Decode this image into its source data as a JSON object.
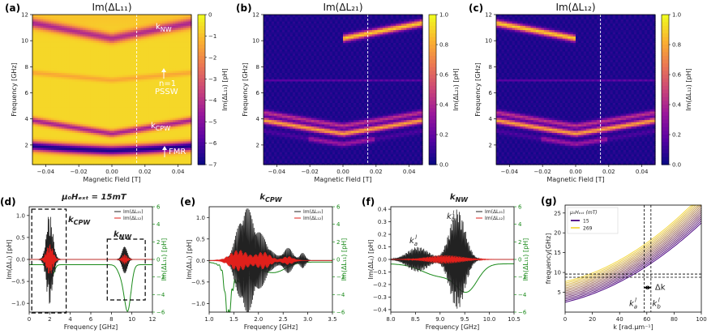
{
  "panels": [
    {
      "id": "a",
      "label": "(a)",
      "title": "Im(ΔL₁₁)",
      "xlabel": "Magnetic Field [T]",
      "ylabel": "Frequency [GHz]",
      "cbar_label": "Im(ΔL₁₁) [pH]",
      "cbar_ticks": [
        "0",
        "−1",
        "−2",
        "−3",
        "−4",
        "−5",
        "−6",
        "−7"
      ],
      "annotations": {
        "knw": "k",
        "knw_sub": "NW",
        "pssw1": "n=1",
        "pssw2": "PSSW",
        "kcpw": "k",
        "kcpw_sub": "CPW",
        "fmr": "FMR"
      }
    },
    {
      "id": "b",
      "label": "(b)",
      "title": "Im(ΔL₂₁)",
      "xlabel": "Magnetic Field [T]",
      "ylabel": "Frequency [GHz]",
      "cbar_label": "Im(ΔL₂₁) [pH]",
      "cbar_ticks": [
        "1.0",
        "0.8",
        "0.6",
        "0.4",
        "0.2",
        "0.0"
      ]
    },
    {
      "id": "c",
      "label": "(c)",
      "title": "Im(ΔL₁₂)",
      "xlabel": "Magnetic Field [T]",
      "ylabel": "Frequency [GHz]",
      "cbar_label": "Im(ΔL₁₂) [pH]",
      "cbar_ticks": [
        "1.0",
        "0.8",
        "0.6",
        "0.4",
        "0.2",
        "0.0"
      ]
    },
    {
      "id": "d",
      "label": "(d)",
      "title": "μ₀Hₑₓₜ = 15mT",
      "xlabel": "Frequency [GHz]",
      "ylabel": "Im(ΔLᵢⱼ) [pH]",
      "ylabel2": "Im(ΔL₁₁) [pH]",
      "legend": [
        "Im(ΔL₂₁)",
        "Im(ΔL₁₂)"
      ],
      "box1": "k",
      "box1_sub": "CPW",
      "box2": "k",
      "box2_sub": "NW"
    },
    {
      "id": "e",
      "label": "(e)",
      "title": "k",
      "title_sub": "CPW",
      "xlabel": "Frequency [GHz]",
      "ylabel": "Im(ΔLᵢⱼ) [pH]",
      "ylabel2": "Im(ΔL₁₁) [pH]",
      "legend": [
        "Im(ΔL₂₁)",
        "Im(ΔL₁₂)"
      ]
    },
    {
      "id": "f",
      "label": "(f)",
      "title": "k",
      "title_sub": "NW",
      "xlabel": "Frequency [GHz]",
      "ylabel": "Im(ΔLᵢⱼ) [pH]",
      "ylabel2": "Im(ΔL₁₁) [pH]",
      "legend": [
        "Im(ΔL₂₁)",
        "Im(ΔL₁₂)"
      ],
      "ka": "k",
      "ka_sub": "a",
      "ka_sup": "l",
      "kb": "k",
      "kb_sub": "b",
      "kb_sup": "l"
    },
    {
      "id": "g",
      "label": "(g)",
      "xlabel": "k [rad.μm⁻¹]",
      "ylabel": "frequency[GHz]",
      "legend_title": "μ₀Hₑₓₜ (mT)",
      "legend": [
        "15",
        "269"
      ],
      "dk": "Δk",
      "ka": "k",
      "ka_sub": "a",
      "ka_sup": "l",
      "kb": "k",
      "kb_sub": "b",
      "kb_sup": "l"
    }
  ],
  "chart_data": [
    {
      "type": "heatmap",
      "panel": "a",
      "xlim": [
        -0.048,
        0.048
      ],
      "ylim": [
        0.5,
        12
      ],
      "xticks": [
        -0.04,
        -0.02,
        0.0,
        0.02,
        0.04
      ],
      "yticks": [
        2,
        4,
        6,
        8,
        10,
        12
      ],
      "zlim": [
        -7,
        0
      ],
      "dashed_x": 0.015
    },
    {
      "type": "heatmap",
      "panel": "b",
      "xlim": [
        -0.048,
        0.048
      ],
      "ylim": [
        0.5,
        12
      ],
      "xticks": [
        -0.04,
        -0.02,
        0.0,
        0.02,
        0.04
      ],
      "yticks": [
        2,
        4,
        6,
        8,
        10,
        12
      ],
      "zlim": [
        0,
        1
      ],
      "dashed_x": 0.015
    },
    {
      "type": "heatmap",
      "panel": "c",
      "xlim": [
        -0.048,
        0.048
      ],
      "ylim": [
        0.5,
        12
      ],
      "xticks": [
        -0.04,
        -0.02,
        0.0,
        0.02,
        0.04
      ],
      "yticks": [
        2,
        4,
        6,
        8,
        10,
        12
      ],
      "zlim": [
        0,
        1
      ],
      "dashed_x": 0.015
    },
    {
      "type": "line",
      "panel": "d",
      "xlim": [
        0,
        12
      ],
      "ylim": [
        -1.2,
        1.2
      ],
      "y2lim": [
        -6,
        6
      ],
      "xticks": [
        0,
        2,
        4,
        6,
        8,
        10,
        12
      ],
      "yticks": [
        -1.0,
        -0.5,
        0.0,
        0.5,
        1.0
      ],
      "y2ticks": [
        -6,
        -4,
        -2,
        0,
        2,
        4,
        6
      ],
      "series": [
        {
          "name": "Im(ΔL₂₁)",
          "color": "#222222"
        },
        {
          "name": "Im(ΔL₁₂)",
          "color": "#e0201b"
        },
        {
          "name": "Im(ΔL₁₁)",
          "color": "#1a8a1a"
        }
      ]
    },
    {
      "type": "line",
      "panel": "e",
      "xlim": [
        1.0,
        3.5
      ],
      "ylim": [
        -1.2,
        1.25
      ],
      "y2lim": [
        -6,
        6
      ],
      "xticks": [
        1.0,
        1.5,
        2.0,
        2.5,
        3.0,
        3.5
      ],
      "yticks": [
        -1.0,
        -0.5,
        0.0,
        0.5,
        1.0
      ],
      "y2ticks": [
        -6,
        -4,
        -2,
        0,
        2,
        4,
        6
      ],
      "series": [
        {
          "name": "Im(ΔL₂₁)",
          "color": "#222222"
        },
        {
          "name": "Im(ΔL₁₂)",
          "color": "#e0201b"
        },
        {
          "name": "Im(ΔL₁₁)",
          "color": "#1a8a1a"
        }
      ]
    },
    {
      "type": "line",
      "panel": "f",
      "xlim": [
        8.0,
        10.5
      ],
      "ylim": [
        -0.42,
        0.42
      ],
      "y2lim": [
        -6,
        6
      ],
      "xticks": [
        8.0,
        8.5,
        9.0,
        9.5,
        10.0,
        10.5
      ],
      "yticks": [
        -0.4,
        -0.3,
        -0.2,
        -0.1,
        0.0,
        0.1,
        0.2,
        0.3,
        0.4
      ],
      "y2ticks": [
        -6,
        -4,
        -2,
        0,
        2,
        4,
        6
      ],
      "series": [
        {
          "name": "Im(ΔL₂₁)",
          "color": "#222222"
        },
        {
          "name": "Im(ΔL₁₂)",
          "color": "#e0201b"
        },
        {
          "name": "Im(ΔL₁₁)",
          "color": "#1a8a1a"
        }
      ]
    },
    {
      "type": "line",
      "panel": "g",
      "xlim": [
        0,
        100
      ],
      "ylim": [
        0,
        27
      ],
      "xticks": [
        0,
        20,
        40,
        60,
        80,
        100
      ],
      "yticks": [
        5,
        10,
        15,
        20,
        25
      ],
      "field_range_mT": [
        15,
        269
      ],
      "vlines_k": [
        58,
        63
      ],
      "hlines_f": [
        8.8,
        9.6
      ]
    }
  ]
}
